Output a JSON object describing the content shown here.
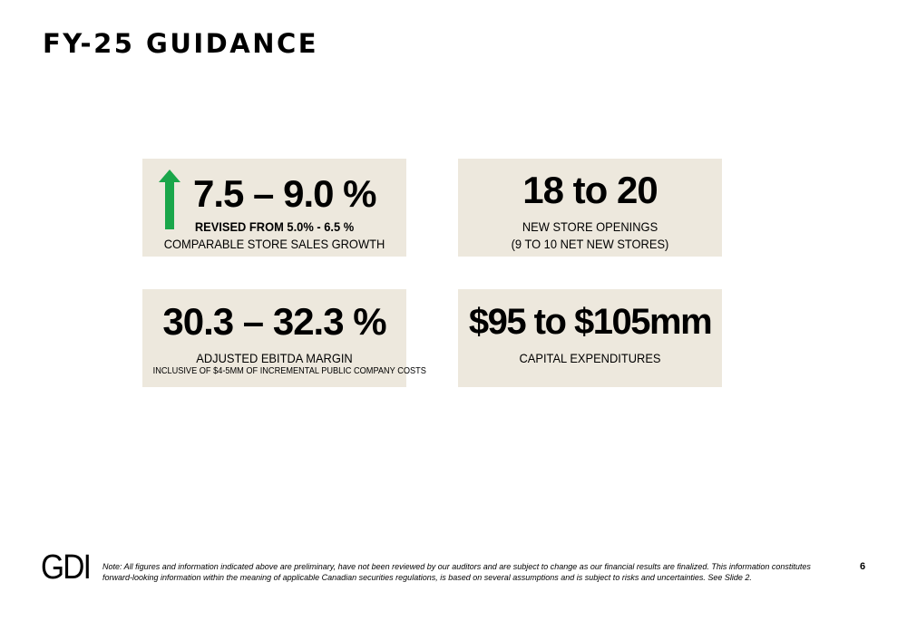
{
  "slide": {
    "title": "FY-25 GUIDANCE",
    "page_number": "6"
  },
  "cards": [
    {
      "headline": "7.5 – 9.0 %",
      "line1": "REVISED FROM 5.0% - 6.5 %",
      "line2": "COMPARABLE STORE SALES GROWTH",
      "indicator": "up-arrow-icon",
      "indicator_color": "#1aa64a"
    },
    {
      "headline": "18 to 20",
      "line1": "NEW STORE OPENINGS",
      "line2": "(9 TO 10 NET NEW STORES)"
    },
    {
      "headline": "30.3 – 32.3 %",
      "line1": "ADJUSTED EBITDA MARGIN",
      "line2": "INCLUSIVE OF $4-5MM OF INCREMENTAL PUBLIC COMPANY COSTS"
    },
    {
      "headline": "$95 to $105mm",
      "line1": "CAPITAL EXPENDITURES"
    }
  ],
  "footer": {
    "logo": "GDI",
    "note": "Note: All figures and information indicated above are preliminary, have not been reviewed by our auditors and are subject to change as our financial results are finalized. This information constitutes forward-looking information within the meaning of applicable Canadian securities regulations, is based on several assumptions and is subject to risks and uncertainties. See Slide 2."
  },
  "colors": {
    "card_background": "#ede8dd",
    "text": "#000000"
  }
}
